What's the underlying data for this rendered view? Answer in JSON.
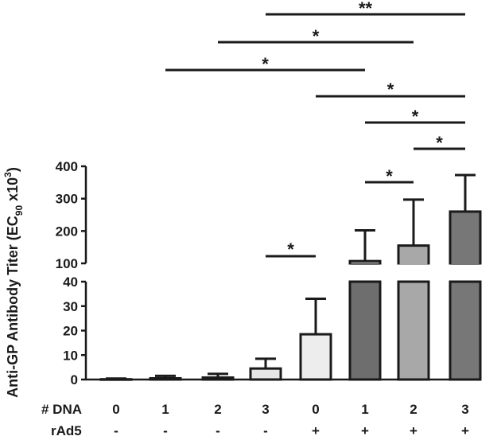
{
  "chart_data": {
    "type": "bar",
    "ylabel_prefix": "Anti-GP Antibody Titer (EC",
    "ylabel_sub": "90",
    "ylabel_mid": " x10",
    "ylabel_sup": "3",
    "ylabel_suffix": ")",
    "axis_break": {
      "lower": [
        0,
        40
      ],
      "upper": [
        100,
        400
      ]
    },
    "yticks_lower": [
      "0",
      "10",
      "20",
      "30",
      "40"
    ],
    "yticks_upper": [
      "100",
      "200",
      "300",
      "400"
    ],
    "row_labels": {
      "dna": "# DNA",
      "rad5": "rAd5"
    },
    "categories": [
      {
        "dna": "0",
        "rad5": "-"
      },
      {
        "dna": "1",
        "rad5": "-"
      },
      {
        "dna": "2",
        "rad5": "-"
      },
      {
        "dna": "3",
        "rad5": "-"
      },
      {
        "dna": "0",
        "rad5": "+"
      },
      {
        "dna": "1",
        "rad5": "+"
      },
      {
        "dna": "2",
        "rad5": "+"
      },
      {
        "dna": "3",
        "rad5": "+"
      }
    ],
    "values": [
      0.1,
      0.5,
      0.8,
      4.5,
      18.5,
      107,
      155,
      260
    ],
    "errors": [
      0.3,
      1.0,
      1.5,
      4.0,
      14.5,
      95,
      142,
      113
    ],
    "bar_colors": [
      "#f2f2f2",
      "#f2f2f2",
      "#f2f2f2",
      "#e6e6e6",
      "#ededed",
      "#6e6e6e",
      "#a8a8a8",
      "#777777"
    ],
    "significance": [
      {
        "from": 3,
        "to": 4,
        "label": "*"
      },
      {
        "from": 1,
        "to": 5,
        "label": "*"
      },
      {
        "from": 2,
        "to": 6,
        "label": "*"
      },
      {
        "from": 3,
        "to": 7,
        "label": "**"
      },
      {
        "from": 4,
        "to": 7,
        "label": "*"
      },
      {
        "from": 5,
        "to": 7,
        "label": "*"
      },
      {
        "from": 6,
        "to": 7,
        "label": "*"
      },
      {
        "from": 5,
        "to": 6,
        "label": "*"
      }
    ]
  }
}
